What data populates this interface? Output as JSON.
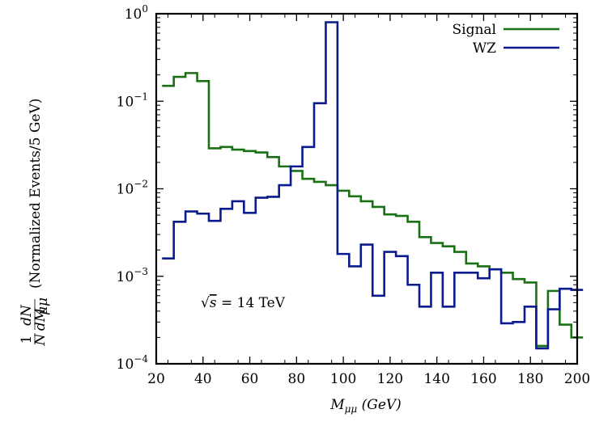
{
  "chart_data": {
    "type": "line",
    "xlabel": "M_{μμ} (GeV)",
    "xlabel_main": "M",
    "xlabel_sub": "μμ",
    "xlabel_unit": " (GeV)",
    "ylabel": "(1/N) dN/dM_{μμ} (Normalized Events/5 GeV)",
    "ylabel_text": "(Normalized Events/5 GeV)",
    "ylabel_fraction_1": "1",
    "ylabel_fraction_N": "N",
    "ylabel_fraction_dN": "dN",
    "ylabel_fraction_dM": "dM",
    "ylabel_fraction_dM_sub": "μμ",
    "xlim": [
      20,
      200
    ],
    "ylim": [
      0.0001,
      1
    ],
    "yscale": "log",
    "x_ticks": [
      "20",
      "40",
      "60",
      "80",
      "100",
      "120",
      "140",
      "160",
      "180",
      "200"
    ],
    "x_tick_values": [
      20,
      40,
      60,
      80,
      100,
      120,
      140,
      160,
      180,
      200
    ],
    "y_ticks": [
      {
        "value": 1,
        "base": "10",
        "exp": "0"
      },
      {
        "value": 0.1,
        "base": "10",
        "exp": "−1"
      },
      {
        "value": 0.01,
        "base": "10",
        "exp": "−2"
      },
      {
        "value": 0.001,
        "base": "10",
        "exp": "−3"
      },
      {
        "value": 0.0001,
        "base": "10",
        "exp": "−4"
      }
    ],
    "legend_position": "top-right",
    "annotation": "√s = 14 TeV",
    "annotation_radical": "√",
    "annotation_s": "s",
    "annotation_rest": " = 14 TeV",
    "bin_edges": [
      22.5,
      27.5,
      32.5,
      37.5,
      42.5,
      47.5,
      52.5,
      57.5,
      62.5,
      67.5,
      72.5,
      77.5,
      82.5,
      87.5,
      92.5,
      97.5,
      102.5,
      107.5,
      112.5,
      117.5,
      122.5,
      127.5,
      132.5,
      137.5,
      142.5,
      147.5,
      152.5,
      157.5,
      162.5,
      167.5,
      172.5,
      177.5,
      182.5,
      187.5,
      192.5,
      197.5
    ],
    "series": [
      {
        "name": "Signal",
        "color": "#1a7014",
        "values": [
          0.15,
          0.19,
          0.21,
          0.17,
          0.029,
          0.03,
          0.028,
          0.027,
          0.026,
          0.023,
          0.018,
          0.016,
          0.013,
          0.012,
          0.011,
          0.0095,
          0.0082,
          0.0072,
          0.0062,
          0.0051,
          0.0049,
          0.0042,
          0.0028,
          0.0024,
          0.0022,
          0.0019,
          0.0014,
          0.0013,
          0.0012,
          0.0011,
          0.00093,
          0.00085,
          0.00016,
          0.00068,
          0.00028,
          0.0002
        ]
      },
      {
        "name": "WZ",
        "color": "#0a1a8f",
        "values": [
          0.0016,
          0.0042,
          0.0055,
          0.0052,
          0.0043,
          0.0059,
          0.0072,
          0.0053,
          0.0079,
          0.0081,
          0.011,
          0.018,
          0.03,
          0.095,
          0.8,
          0.0018,
          0.0013,
          0.0023,
          0.0006,
          0.0019,
          0.0017,
          0.0008,
          0.00045,
          0.0011,
          0.00045,
          0.0011,
          0.0011,
          0.00095,
          0.0012,
          0.00029,
          0.0003,
          0.00045,
          0.00015,
          0.00042,
          0.00072,
          0.0007
        ]
      }
    ]
  }
}
